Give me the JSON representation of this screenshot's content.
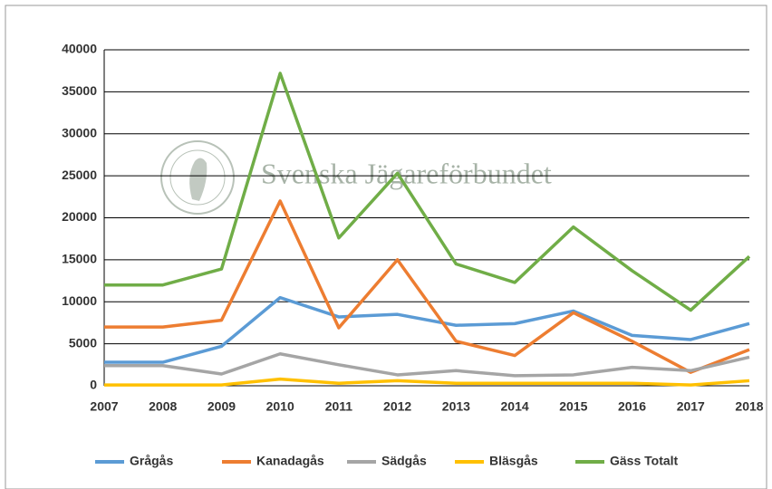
{
  "chart_data": {
    "type": "line",
    "watermark": "Svenska Jägareförbundet",
    "categories": [
      "2007",
      "2008",
      "2009",
      "2010",
      "2011",
      "2012",
      "2013",
      "2014",
      "2015",
      "2016",
      "2017",
      "2018"
    ],
    "series": [
      {
        "name": "Grågås",
        "color": "#5b9bd5",
        "values": [
          2800,
          2800,
          4700,
          10500,
          8200,
          8500,
          7200,
          7400,
          8900,
          6000,
          5500,
          7400
        ]
      },
      {
        "name": "Kanadagås",
        "color": "#ed7d31",
        "values": [
          7000,
          7000,
          7800,
          22000,
          6900,
          15000,
          5300,
          3600,
          8700,
          5300,
          1600,
          4300
        ]
      },
      {
        "name": "Sädgås",
        "color": "#a5a5a5",
        "values": [
          2400,
          2400,
          1400,
          3800,
          2500,
          1300,
          1800,
          1200,
          1300,
          2200,
          1800,
          3400
        ]
      },
      {
        "name": "Bläsgås",
        "color": "#ffc000",
        "values": [
          100,
          100,
          100,
          800,
          300,
          600,
          300,
          300,
          300,
          300,
          100,
          600
        ]
      },
      {
        "name": "Gäss Totalt",
        "color": "#70ad47",
        "values": [
          12000,
          12000,
          13900,
          37200,
          17600,
          25300,
          14500,
          12300,
          18900,
          13700,
          9000,
          15400
        ]
      }
    ],
    "ylim": [
      0,
      40000
    ],
    "yticks": [
      0,
      5000,
      10000,
      15000,
      20000,
      25000,
      30000,
      35000,
      40000
    ],
    "grid": true,
    "legend": "bottom"
  }
}
